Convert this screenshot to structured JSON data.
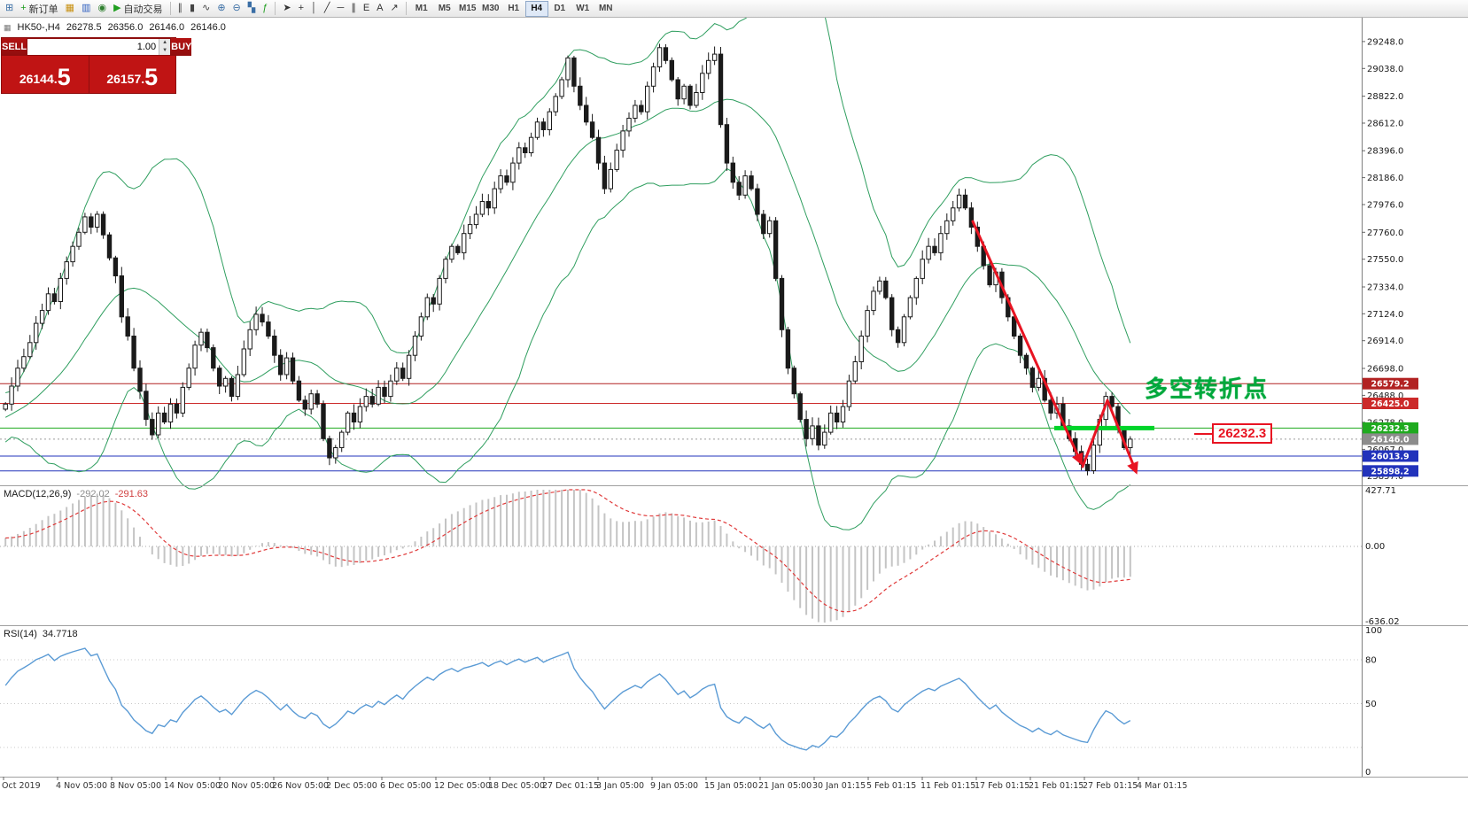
{
  "toolbar": {
    "buttons": [
      {
        "name": "new-chart",
        "icon": "⊞",
        "label": "",
        "color": "#3a6ea5"
      },
      {
        "name": "new-order",
        "icon": "+",
        "label": "新订单",
        "color": "#1f9e1f"
      },
      {
        "name": "market-watch",
        "icon": "▦",
        "label": "",
        "color": "#c89010"
      },
      {
        "name": "data-window",
        "icon": "▥",
        "label": "",
        "color": "#3060c0"
      },
      {
        "name": "navigator",
        "icon": "◉",
        "label": "",
        "color": "#308030"
      },
      {
        "name": "autotrading",
        "icon": "▶",
        "label": "自动交易",
        "color": "#1f9e1f"
      },
      {
        "sep": true
      },
      {
        "name": "chart-bars",
        "icon": "∥",
        "label": "",
        "color": "#444444"
      },
      {
        "name": "chart-candles",
        "icon": "▮",
        "label": "",
        "color": "#444444"
      },
      {
        "name": "chart-line",
        "icon": "∿",
        "label": "",
        "color": "#444444"
      },
      {
        "name": "zoom-in",
        "icon": "⊕",
        "label": "",
        "color": "#3a6ea5"
      },
      {
        "name": "zoom-out",
        "icon": "⊖",
        "label": "",
        "color": "#3a6ea5"
      },
      {
        "name": "tile-windows",
        "icon": "▚",
        "label": "",
        "color": "#3a6ea5"
      },
      {
        "name": "indicators",
        "icon": "ƒ",
        "label": "",
        "color": "#1f9e1f"
      },
      {
        "sep": true
      },
      {
        "name": "cursor",
        "icon": "➤",
        "label": "",
        "color": "#333333"
      },
      {
        "name": "crosshair",
        "icon": "+",
        "label": "",
        "color": "#333333"
      },
      {
        "name": "vertical-line",
        "icon": "│",
        "label": "",
        "color": "#333333"
      },
      {
        "name": "trendline",
        "icon": "╱",
        "label": "",
        "color": "#333333"
      },
      {
        "name": "horizontal-line",
        "icon": "─",
        "label": "",
        "color": "#333333"
      },
      {
        "name": "equidistant-channel",
        "icon": "∥",
        "label": "",
        "color": "#333333"
      },
      {
        "name": "elliott-tool",
        "icon": "E",
        "label": "",
        "color": "#333333"
      },
      {
        "name": "text-tool",
        "icon": "A",
        "label": "",
        "color": "#333333"
      },
      {
        "name": "arrows-tool",
        "icon": "↗",
        "label": "",
        "color": "#333333"
      },
      {
        "sep": true
      }
    ],
    "timeframes": [
      "M1",
      "M5",
      "M15",
      "M30",
      "H1",
      "H4",
      "D1",
      "W1",
      "MN"
    ],
    "active_timeframe": "H4"
  },
  "symbol_bar": {
    "symbol": "HK50-,H4",
    "open": "26278.5",
    "high": "26356.0",
    "low": "26146.0",
    "close": "26146.0"
  },
  "trade_panel": {
    "sell_label": "SELL",
    "buy_label": "BUY",
    "volume": "1.00",
    "sell_price": {
      "main": "26144.",
      "big": "5"
    },
    "buy_price": {
      "main": "26157.",
      "big": "5"
    }
  },
  "macd": {
    "label": "MACD(12,26,9)",
    "value_main": "-292.02",
    "value_signal": "-291.63",
    "scale_top": "427.71",
    "scale_zero": "0.00",
    "scale_bottom": "-636.02"
  },
  "rsi": {
    "label": "RSI(14)",
    "value": "34.7718",
    "scale": [
      "100",
      "80",
      "50",
      "0"
    ]
  },
  "annotations": {
    "turning_point_text": "多空转折点",
    "price_label": "26232.3"
  },
  "price_scale": [
    29248,
    29038,
    28822,
    28612,
    28396,
    28186,
    27976,
    27760,
    27550,
    27334,
    27124,
    26914,
    26698,
    26488,
    26278,
    26067,
    25857
  ],
  "time_axis": [
    "Oct 2019",
    "4 Nov 05:00",
    "8 Nov 05:00",
    "14 Nov 05:00",
    "20 Nov 05:00",
    "26 Nov 05:00",
    "2 Dec 05:00",
    "6 Dec 05:00",
    "12 Dec 05:00",
    "18 Dec 05:00",
    "27 Dec 01:15",
    "3 Jan 05:00",
    "9 Jan 05:00",
    "15 Jan 05:00",
    "21 Jan 05:00",
    "30 Jan 01:15",
    "5 Feb 01:15",
    "11 Feb 01:15",
    "17 Feb 01:15",
    "21 Feb 01:15",
    "27 Feb 01:15",
    "4 Mar 01:15"
  ],
  "colors": {
    "bull": "#ffffff",
    "bear": "#1a1a1a",
    "wick": "#1a1a1a",
    "bollinger": "#2f9e5f",
    "macd_hist": "#c4c4c4",
    "macd_signal": "#e03a3a",
    "rsi": "#5b9bd5",
    "arrow": "#e81422",
    "highlight_green": "#00d42a",
    "current_tag": "#8c8c8c"
  },
  "chart_data": {
    "type": "candlestick",
    "symbol": "HK50-",
    "timeframe": "H4",
    "title": "HK50- H4 with Bollinger Bands, MACD(12,26,9), RSI(14)",
    "price_range": [
      25800,
      29420
    ],
    "first_open": 26380,
    "pre_closes": [
      26100,
      26050,
      26150,
      26250,
      26200,
      26300,
      26250,
      26350,
      26300,
      26400,
      26350,
      26300,
      26400,
      26350,
      26450,
      26400,
      26350,
      26300,
      26350,
      26400
    ],
    "closes": [
      26420,
      26560,
      26700,
      26790,
      26900,
      27050,
      27150,
      27280,
      27220,
      27400,
      27530,
      27650,
      27760,
      27880,
      27800,
      27900,
      27740,
      27560,
      27420,
      27100,
      26950,
      26700,
      26520,
      26300,
      26180,
      26350,
      26280,
      26420,
      26350,
      26550,
      26700,
      26880,
      26980,
      26860,
      26700,
      26560,
      26620,
      26480,
      26650,
      26850,
      27000,
      27120,
      27060,
      26950,
      26800,
      26650,
      26780,
      26600,
      26450,
      26380,
      26500,
      26420,
      26150,
      26000,
      26080,
      26200,
      26350,
      26280,
      26400,
      26480,
      26420,
      26550,
      26480,
      26600,
      26700,
      26620,
      26800,
      26950,
      27100,
      27250,
      27200,
      27400,
      27550,
      27650,
      27600,
      27750,
      27820,
      27900,
      28000,
      27950,
      28100,
      28200,
      28150,
      28300,
      28420,
      28380,
      28500,
      28620,
      28560,
      28700,
      28820,
      28950,
      29120,
      28900,
      28750,
      28620,
      28500,
      28300,
      28100,
      28250,
      28400,
      28550,
      28650,
      28750,
      28700,
      28900,
      29050,
      29200,
      29100,
      28950,
      28800,
      28900,
      28750,
      28850,
      29000,
      29100,
      29150,
      28600,
      28300,
      28150,
      28050,
      28200,
      28100,
      27900,
      27750,
      27850,
      27400,
      27000,
      26700,
      26500,
      26300,
      26150,
      26250,
      26100,
      26200,
      26350,
      26280,
      26400,
      26600,
      26750,
      26950,
      27150,
      27300,
      27380,
      27250,
      27000,
      26900,
      27100,
      27250,
      27400,
      27550,
      27650,
      27600,
      27750,
      27850,
      27950,
      28050,
      27950,
      27800,
      27650,
      27500,
      27350,
      27450,
      27250,
      27100,
      26950,
      26800,
      26700,
      26550,
      26620,
      26450,
      26350,
      26420,
      26250,
      26150,
      26050,
      25950,
      25900,
      26100,
      26300,
      26480,
      26400,
      26220,
      26080,
      26146
    ],
    "indicators": {
      "bollinger": {
        "period": 20,
        "deviation": 2
      },
      "macd": {
        "fast": 12,
        "slow": 26,
        "signal": 9,
        "scale_max": 427.71,
        "scale_min": -636.02
      },
      "rsi": {
        "period": 14
      }
    },
    "levels": [
      {
        "price": 26579.2,
        "label": "26579.2",
        "color": "#b22222"
      },
      {
        "price": 26425.0,
        "label": "26425.0",
        "color": "#cc2a2a"
      },
      {
        "price": 26232.3,
        "label": "26232.3",
        "color": "#1faa1f"
      },
      {
        "price": 26013.9,
        "label": "26013.9",
        "color": "#2233bb"
      },
      {
        "price": 25898.2,
        "label": "25898.2",
        "color": "#2233bb"
      }
    ],
    "current_price": {
      "value": 26146.0,
      "label": "26146.0"
    }
  }
}
